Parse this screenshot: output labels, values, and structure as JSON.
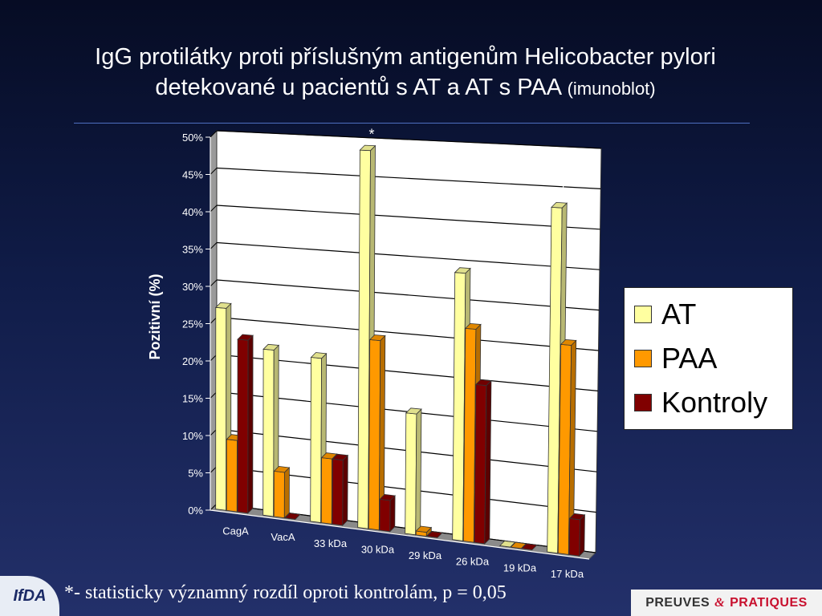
{
  "title": {
    "line1": "IgG protilátky proti příslušným antigenům Helicobacter pylori",
    "line2_main": "detekované u pacientů s AT a AT s PAA",
    "line2_sub": "(imunoblot)"
  },
  "footnote": "*- statisticky významný rozdíl oproti kontrolám, p = 0,05",
  "logos": {
    "left_text": "IfDA",
    "right_part1": "PREUVES",
    "right_amp": "&",
    "right_part2": "PRATIQUES"
  },
  "chart_data": {
    "type": "bar",
    "ylabel": "Pozitivní (%)",
    "ylim": [
      0,
      50
    ],
    "yticks": [
      "0%",
      "5%",
      "10%",
      "15%",
      "20%",
      "25%",
      "30%",
      "35%",
      "40%",
      "45%",
      "50%"
    ],
    "categories": [
      "CagA",
      "VacA",
      "33 kDa",
      "30 kDa",
      "29 kDa",
      "26 kDa",
      "19 kDa",
      "17 kDa"
    ],
    "series": [
      {
        "name": "AT",
        "color": "#ffffa0",
        "values": [
          27,
          22,
          21.5,
          49,
          15.5,
          34,
          0,
          43
        ]
      },
      {
        "name": "PAA",
        "color": "#ff9900",
        "values": [
          9.5,
          6,
          8.5,
          24.5,
          0.5,
          27,
          0,
          26
        ]
      },
      {
        "name": "Kontroly",
        "color": "#800000",
        "values": [
          23,
          0,
          8.5,
          4,
          0,
          20,
          0,
          4.5
        ]
      }
    ],
    "significance": [
      {
        "category": "30 kDa",
        "series": "AT",
        "label": "*"
      },
      {
        "category": "17 kDa",
        "series": "AT",
        "label": "*"
      },
      {
        "category": "30 kDa",
        "series": "PAA",
        "label": "*"
      },
      {
        "category": "VacA",
        "series": "AT",
        "label": "*"
      }
    ],
    "grid": true,
    "legend": "right"
  }
}
